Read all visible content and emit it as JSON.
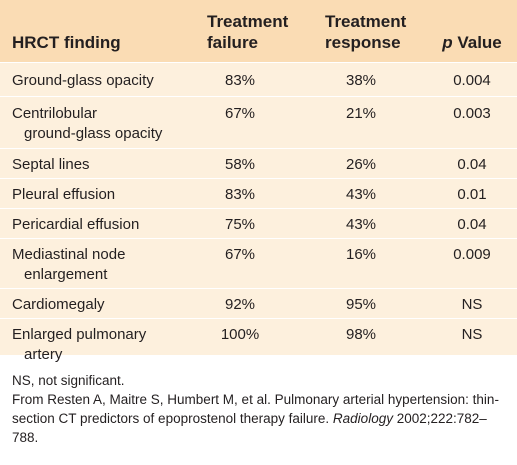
{
  "table": {
    "headers": {
      "finding": "HRCT finding",
      "failure_1": "Treatment",
      "failure_2": "failure",
      "response_1": "Treatment",
      "response_2": "response",
      "p_italic": "p",
      "p_rest": " Value"
    },
    "rows": [
      {
        "finding_1": "Ground-glass opacity",
        "finding_2": "",
        "failure": "83%",
        "response": "38%",
        "p": "0.004"
      },
      {
        "finding_1": "Centrilobular",
        "finding_2": "ground-glass opacity",
        "failure": "67%",
        "response": "21%",
        "p": "0.003"
      },
      {
        "finding_1": "Septal lines",
        "finding_2": "",
        "failure": "58%",
        "response": "26%",
        "p": "0.04"
      },
      {
        "finding_1": "Pleural effusion",
        "finding_2": "",
        "failure": "83%",
        "response": "43%",
        "p": "0.01"
      },
      {
        "finding_1": "Pericardial effusion",
        "finding_2": "",
        "failure": "75%",
        "response": "43%",
        "p": "0.04"
      },
      {
        "finding_1": "Mediastinal node",
        "finding_2": "enlargement",
        "failure": "67%",
        "response": "16%",
        "p": "0.009"
      },
      {
        "finding_1": "Cardiomegaly",
        "finding_2": "",
        "failure": "92%",
        "response": "95%",
        "p": "NS"
      },
      {
        "finding_1": "Enlarged pulmonary",
        "finding_2": "artery",
        "failure": "100%",
        "response": "98%",
        "p": "NS"
      }
    ]
  },
  "footnote": {
    "abbrev": "NS, not significant.",
    "source_pre": "From Resten A, Maitre S, Humbert M, et al. Pulmonary arterial hypertension: thin-section CT predictors of epoprostenol therapy failure. ",
    "source_journal": "Radiology",
    "source_post": " 2002;222:782–788."
  },
  "colors": {
    "header_bg": "#fadcb4",
    "body_bg": "#fdf0dd",
    "text": "#231f20"
  }
}
